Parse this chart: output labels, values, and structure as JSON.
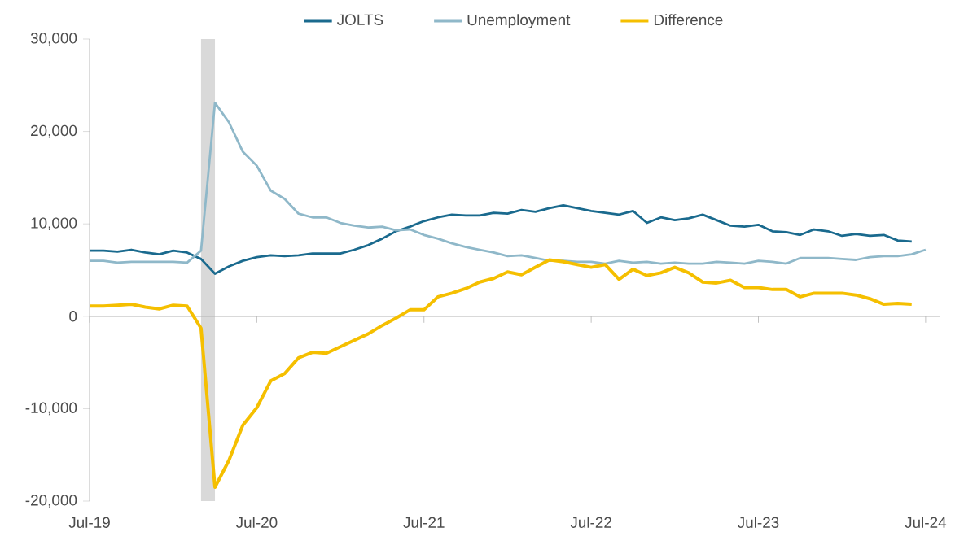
{
  "chart_data": {
    "type": "line",
    "x": [
      "2019-07",
      "2019-08",
      "2019-09",
      "2019-10",
      "2019-11",
      "2019-12",
      "2020-01",
      "2020-02",
      "2020-03",
      "2020-04",
      "2020-05",
      "2020-06",
      "2020-07",
      "2020-08",
      "2020-09",
      "2020-10",
      "2020-11",
      "2020-12",
      "2021-01",
      "2021-02",
      "2021-03",
      "2021-04",
      "2021-05",
      "2021-06",
      "2021-07",
      "2021-08",
      "2021-09",
      "2021-10",
      "2021-11",
      "2021-12",
      "2022-01",
      "2022-02",
      "2022-03",
      "2022-04",
      "2022-05",
      "2022-06",
      "2022-07",
      "2022-08",
      "2022-09",
      "2022-10",
      "2022-11",
      "2022-12",
      "2023-01",
      "2023-02",
      "2023-03",
      "2023-04",
      "2023-05",
      "2023-06",
      "2023-07",
      "2023-08",
      "2023-09",
      "2023-10",
      "2023-11",
      "2023-12",
      "2024-01",
      "2024-02",
      "2024-03",
      "2024-04",
      "2024-05",
      "2024-06",
      "2024-07"
    ],
    "series": [
      {
        "name": "JOLTS",
        "color": "#1a6a8e",
        "values": [
          7100,
          7100,
          7000,
          7200,
          6900,
          6700,
          7100,
          6900,
          6200,
          4600,
          5400,
          6000,
          6400,
          6600,
          6500,
          6600,
          6800,
          6800,
          6800,
          7200,
          7700,
          8400,
          9200,
          9700,
          10300,
          10700,
          11000,
          10900,
          10900,
          11200,
          11100,
          11500,
          11300,
          11700,
          12000,
          11700,
          11400,
          11200,
          11000,
          11400,
          10100,
          10700,
          10400,
          10600,
          11000,
          10400,
          9800,
          9700,
          9900,
          9200,
          9100,
          8800,
          9400,
          9200,
          8700,
          8900,
          8700,
          8800,
          8200,
          8100,
          null
        ]
      },
      {
        "name": "Unemployment",
        "color": "#8fb8c9",
        "values": [
          6000,
          6000,
          5800,
          5900,
          5900,
          5900,
          5900,
          5800,
          7100,
          23100,
          21000,
          17800,
          16300,
          13600,
          12700,
          11100,
          10700,
          10700,
          10100,
          9800,
          9600,
          9700,
          9300,
          9400,
          8800,
          8400,
          7900,
          7500,
          7200,
          6900,
          6500,
          6600,
          6300,
          6000,
          6000,
          5900,
          5900,
          5700,
          6000,
          5800,
          5900,
          5700,
          5800,
          5700,
          5700,
          5900,
          5800,
          5700,
          6000,
          5900,
          5700,
          6300,
          6300,
          6300,
          6200,
          6100,
          6400,
          6500,
          6500,
          6700,
          7200
        ]
      },
      {
        "name": "Difference",
        "color": "#f5bf00",
        "values": [
          1100,
          1100,
          1200,
          1300,
          1000,
          800,
          1200,
          1100,
          -1300,
          -18500,
          -15600,
          -11800,
          -9900,
          -7000,
          -6200,
          -4500,
          -3900,
          -4000,
          -3300,
          -2600,
          -1900,
          -1000,
          -200,
          700,
          700,
          2100,
          2500,
          3000,
          3700,
          4100,
          4800,
          4500,
          5300,
          6100,
          5900,
          5600,
          5300,
          5600,
          4000,
          5100,
          4400,
          4700,
          5300,
          4700,
          3700,
          3600,
          3900,
          3100,
          3100,
          2900,
          2900,
          2100,
          2500,
          2500,
          2500,
          2300,
          1900,
          1300,
          1400,
          1300,
          null
        ]
      }
    ],
    "xlim": [
      "2019-07",
      "2024-08"
    ],
    "xticks": [
      {
        "value": "2019-07",
        "label": "Jul-19"
      },
      {
        "value": "2020-07",
        "label": "Jul-20"
      },
      {
        "value": "2021-07",
        "label": "Jul-21"
      },
      {
        "value": "2022-07",
        "label": "Jul-22"
      },
      {
        "value": "2023-07",
        "label": "Jul-23"
      },
      {
        "value": "2024-07",
        "label": "Jul-24"
      }
    ],
    "ylim": [
      -20000,
      30000
    ],
    "yticks": [
      {
        "value": -20000,
        "label": "-20,000"
      },
      {
        "value": -10000,
        "label": "-10,000"
      },
      {
        "value": 0,
        "label": "0"
      },
      {
        "value": 10000,
        "label": "10,000"
      },
      {
        "value": 20000,
        "label": "20,000"
      },
      {
        "value": 30000,
        "label": "30,000"
      }
    ],
    "bands": [
      {
        "axis": "x",
        "from": "2020-03",
        "to": "2020-04",
        "color": "#d9d9d9"
      }
    ],
    "ref_lines": [
      {
        "axis": "y",
        "value": 0,
        "color": "#b3b3b3"
      }
    ],
    "legend": "top",
    "marker": "none",
    "line_style": "solid"
  }
}
